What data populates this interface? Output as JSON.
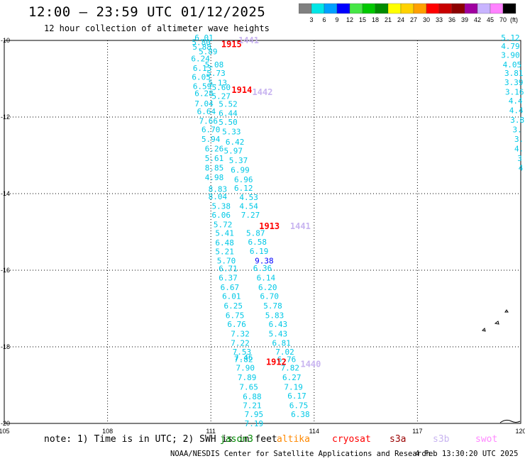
{
  "header": {
    "title": "12:00 – 23:59 UTC 01/12/2025",
    "subtitle": "12 hour collection of altimeter wave heights"
  },
  "color_scale": {
    "unit_label": "(ft)",
    "ticks": [
      "3",
      "6",
      "9",
      "12",
      "15",
      "18",
      "21",
      "24",
      "27",
      "30",
      "33",
      "36",
      "39",
      "42",
      "45",
      "70"
    ],
    "colors": [
      "#808080",
      "#00e6e6",
      "#00a0ff",
      "#0000ff",
      "#46e646",
      "#00c800",
      "#008c00",
      "#ffff00",
      "#ffd200",
      "#ffa000",
      "#ff0000",
      "#c80000",
      "#8c0000",
      "#a000a0",
      "#c8b4ff",
      "#ff82ff",
      "#000000"
    ]
  },
  "footer": {
    "note": "note: 1) Time is in UTC; 2) SWH is in feet",
    "satellites": [
      {
        "name": "jason3",
        "color": "#008800"
      },
      {
        "name": "altika",
        "color": "#ff8800"
      },
      {
        "name": "cryosat",
        "color": "#ff0000"
      },
      {
        "name": "s3a",
        "color": "#990000"
      },
      {
        "name": "s3b",
        "color": "#c8b4f0"
      },
      {
        "name": "swot",
        "color": "#ff88ff"
      }
    ],
    "credit": "NOAA/NESDIS Center for Satellite Applications and Research",
    "timestamp": "4 Feb 13:30:20 UTC 2025"
  },
  "chart_data": {
    "type": "scatter",
    "title": "12:00 – 23:59 UTC 01/12/2025",
    "subtitle": "12 hour collection of altimeter wave heights",
    "x_axis": {
      "ticks": [
        "105",
        "108",
        "111",
        "114",
        "117",
        "120"
      ],
      "range": [
        105,
        120
      ]
    },
    "y_axis": {
      "ticks": [
        "-10",
        "-12",
        "-14",
        "-16",
        "-18",
        "-20"
      ],
      "range": [
        -20,
        -10
      ]
    },
    "grid": true,
    "time_labels": [
      {
        "text": "1915",
        "lon": 111.6,
        "lat": -10.1,
        "color": "#ff0000"
      },
      {
        "text": "1441",
        "lon": 112.1,
        "lat": -10.0,
        "color": "#c8b4f0"
      },
      {
        "text": "1914",
        "lon": 111.9,
        "lat": -11.3,
        "color": "#ff0000"
      },
      {
        "text": "1442",
        "lon": 112.5,
        "lat": -11.35,
        "color": "#c8b4f0"
      },
      {
        "text": "1913",
        "lon": 112.7,
        "lat": -14.85,
        "color": "#ff0000"
      },
      {
        "text": "1441",
        "lon": 113.6,
        "lat": -14.85,
        "color": "#c8b4f0"
      },
      {
        "text": "1912",
        "lon": 112.9,
        "lat": -18.4,
        "color": "#ff0000"
      },
      {
        "text": "1440",
        "lon": 113.9,
        "lat": -18.45,
        "color": "#c8b4f0"
      }
    ],
    "tracks": [
      {
        "color": "#00c8e6",
        "points": [
          [
            110.8,
            -10.0,
            "6.01"
          ],
          [
            110.72,
            -10.12,
            "5.80"
          ],
          [
            110.74,
            -10.24,
            "5.88"
          ],
          [
            110.92,
            -10.36,
            "5.89"
          ],
          [
            110.7,
            -10.55,
            "6.24"
          ],
          [
            111.1,
            -10.7,
            "5.08"
          ],
          [
            110.75,
            -10.8,
            "6.13"
          ],
          [
            111.15,
            -10.93,
            "5.73"
          ],
          [
            110.72,
            -11.03,
            "6.05"
          ],
          [
            111.2,
            -11.18,
            "5.13"
          ],
          [
            110.75,
            -11.27,
            "6.59"
          ],
          [
            111.3,
            -11.3,
            "5.60"
          ],
          [
            110.8,
            -11.45,
            "6.28"
          ],
          [
            111.3,
            -11.53,
            "5.27"
          ],
          [
            110.8,
            -11.72,
            "7.04"
          ],
          [
            111.5,
            -11.73,
            "5.52"
          ],
          [
            110.87,
            -11.93,
            "6.64"
          ],
          [
            111.5,
            -11.97,
            "6.44"
          ],
          [
            110.93,
            -12.18,
            "7.66"
          ],
          [
            111.5,
            -12.2,
            "5.50"
          ],
          [
            111.0,
            -12.4,
            "6.70"
          ],
          [
            111.6,
            -12.45,
            "5.33"
          ],
          [
            111.0,
            -12.65,
            "5.94"
          ],
          [
            111.7,
            -12.72,
            "6.42"
          ],
          [
            111.1,
            -12.9,
            "6.26"
          ],
          [
            111.65,
            -12.95,
            "5.97"
          ],
          [
            111.1,
            -13.15,
            "5.61"
          ],
          [
            111.8,
            -13.2,
            "5.37"
          ],
          [
            111.1,
            -13.4,
            "8.85"
          ],
          [
            111.85,
            -13.45,
            "6.99"
          ],
          [
            111.1,
            -13.65,
            "4.98"
          ],
          [
            111.95,
            -13.7,
            "6.96"
          ],
          [
            111.2,
            -13.95,
            "8.83"
          ],
          [
            111.95,
            -13.93,
            "6.12"
          ],
          [
            111.2,
            -14.15,
            "8.04"
          ],
          [
            112.1,
            -14.17,
            "4.53"
          ],
          [
            111.3,
            -14.4,
            "5.38"
          ],
          [
            112.1,
            -14.4,
            "4.54"
          ],
          [
            111.3,
            -14.63,
            "6.06"
          ],
          [
            112.15,
            -14.63,
            "7.27"
          ],
          [
            111.35,
            -14.88,
            "5.72"
          ],
          [
            111.4,
            -15.1,
            "5.41"
          ],
          [
            112.3,
            -15.1,
            "5.87"
          ],
          [
            111.4,
            -15.35,
            "6.48"
          ],
          [
            112.35,
            -15.33,
            "6.58"
          ],
          [
            111.4,
            -15.58,
            "5.21"
          ],
          [
            112.4,
            -15.57,
            "6.19"
          ],
          [
            111.45,
            -15.82,
            "5.70"
          ],
          [
            112.5,
            -16.02,
            "6.36"
          ],
          [
            111.5,
            -16.03,
            "6.71"
          ],
          [
            111.5,
            -16.27,
            "6.37"
          ],
          [
            112.6,
            -16.27,
            "6.14"
          ],
          [
            111.55,
            -16.52,
            "6.67"
          ],
          [
            112.65,
            -16.52,
            "6.20"
          ],
          [
            111.6,
            -16.75,
            "6.01"
          ],
          [
            112.7,
            -16.75,
            "6.70"
          ],
          [
            111.65,
            -17.0,
            "6.25"
          ],
          [
            112.8,
            -17.0,
            "5.78"
          ],
          [
            111.7,
            -17.25,
            "6.75"
          ],
          [
            112.85,
            -17.25,
            "5.83"
          ],
          [
            111.75,
            -17.48,
            "6.76"
          ],
          [
            112.95,
            -17.48,
            "6.43"
          ],
          [
            111.85,
            -17.73,
            "7.32"
          ],
          [
            112.95,
            -17.73,
            "5.43"
          ],
          [
            111.85,
            -17.97,
            "7.22"
          ],
          [
            113.05,
            -17.97,
            "6.81"
          ],
          [
            111.9,
            -18.2,
            "7.53"
          ],
          [
            113.15,
            -18.2,
            "7.02"
          ],
          [
            111.95,
            -18.35,
            "7.46"
          ],
          [
            111.95,
            -18.4,
            "7.82"
          ],
          [
            113.2,
            -18.4,
            "6.76"
          ],
          [
            112.0,
            -18.62,
            "7.90"
          ],
          [
            113.3,
            -18.62,
            "7.82"
          ],
          [
            112.05,
            -18.87,
            "7.89"
          ],
          [
            113.35,
            -18.87,
            "6.27"
          ],
          [
            112.1,
            -19.12,
            "7.65"
          ],
          [
            113.4,
            -19.12,
            "7.19"
          ],
          [
            112.2,
            -19.37,
            "6.88"
          ],
          [
            113.5,
            -19.35,
            "6.17"
          ],
          [
            112.2,
            -19.6,
            "7.21"
          ],
          [
            113.55,
            -19.6,
            "6.75"
          ],
          [
            112.25,
            -19.83,
            "7.95"
          ],
          [
            113.6,
            -19.83,
            "6.38"
          ],
          [
            112.25,
            -20.07,
            "7.19"
          ]
        ]
      },
      {
        "color": "#0000ff",
        "points": [
          [
            112.55,
            -15.82,
            "9.38"
          ]
        ]
      },
      {
        "color": "#00c8e6",
        "points": [
          [
            119.7,
            -10.0,
            "5.12"
          ],
          [
            119.7,
            -10.22,
            "4.79"
          ],
          [
            119.7,
            -10.45,
            "3.90"
          ],
          [
            119.75,
            -10.7,
            "4.05"
          ],
          [
            119.8,
            -10.93,
            "3.81"
          ],
          [
            119.8,
            -11.17,
            "3.39"
          ],
          [
            119.82,
            -11.42,
            "3.16"
          ],
          [
            119.85,
            -11.65,
            "4.4"
          ],
          [
            119.87,
            -11.9,
            "4.4"
          ],
          [
            119.9,
            -12.15,
            "3.8"
          ],
          [
            119.9,
            -12.4,
            "3."
          ],
          [
            119.95,
            -12.65,
            "3."
          ],
          [
            119.95,
            -12.9,
            "4."
          ],
          [
            119.97,
            -13.15,
            "3"
          ],
          [
            120.0,
            -13.4,
            "4"
          ]
        ]
      }
    ]
  }
}
